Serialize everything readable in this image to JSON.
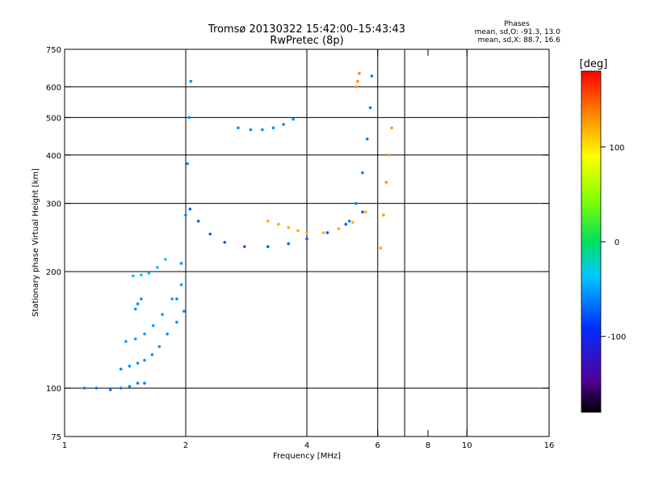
{
  "chart_data": {
    "type": "scatter",
    "title": "Tromsø 20130322 15:42:00–15:43:43",
    "subtitle": "RwPretec (8p)",
    "xlabel": "Frequency [MHz]",
    "ylabel": "Stationary phase Virtual Height [km]",
    "x_scale": "log",
    "y_scale": "log",
    "xlim": [
      1,
      16
    ],
    "ylim": [
      75,
      750
    ],
    "x_ticks": [
      1,
      2,
      4,
      6,
      8,
      10,
      16
    ],
    "x_tick_labels": [
      "1",
      "2",
      "4",
      "6",
      "8",
      "10",
      "16"
    ],
    "x_gridlines": [
      2,
      4,
      6,
      7,
      10
    ],
    "y_ticks": [
      75,
      100,
      200,
      300,
      400,
      500,
      600,
      750
    ],
    "y_tick_labels": [
      "75",
      "100",
      "200",
      "300",
      "400",
      "500",
      "600",
      "750"
    ],
    "y_gridlines": [
      100,
      200,
      300,
      400,
      500,
      600
    ],
    "grid": true,
    "stats": {
      "heading": "Phases",
      "line_o": "mean, sd,O: -91.3, 13.0",
      "line_x": "mean, sd,X: 88.7, 16.6"
    },
    "colorbar": {
      "label": "[deg]",
      "min": -180,
      "max": 180,
      "ticks": [
        100,
        0,
        -100
      ],
      "tick_labels": [
        "100",
        "0",
        "-100"
      ]
    },
    "traces": [
      {
        "x": [
          1.12,
          1.2,
          1.3,
          1.38,
          1.45,
          1.52,
          1.58
        ],
        "y": [
          100,
          100,
          99,
          100,
          101,
          103,
          103
        ],
        "phase": -105
      },
      {
        "x": [
          1.38,
          1.45,
          1.52,
          1.58,
          1.65,
          1.72,
          1.8,
          1.9,
          1.98
        ],
        "y": [
          112,
          114,
          116,
          118,
          122,
          128,
          138,
          148,
          158
        ],
        "phase": -100
      },
      {
        "x": [
          1.42,
          1.5,
          1.58,
          1.66,
          1.75,
          1.85,
          1.95
        ],
        "y": [
          132,
          134,
          138,
          145,
          155,
          170,
          185
        ],
        "phase": -95
      },
      {
        "x": [
          1.48,
          1.55,
          1.62,
          1.7,
          1.78
        ],
        "y": [
          195,
          196,
          198,
          205,
          215
        ],
        "phase": -85
      },
      {
        "x": [
          1.5,
          1.52,
          1.55
        ],
        "y": [
          160,
          165,
          170
        ],
        "phase": -100
      },
      {
        "x": [
          1.9,
          1.95,
          2.0,
          2.02,
          2.04,
          2.06
        ],
        "y": [
          170,
          210,
          280,
          380,
          500,
          620
        ],
        "phase": -100
      },
      {
        "x": [
          2.05,
          2.15,
          2.3,
          2.5,
          2.8,
          3.2,
          3.6,
          4.0,
          4.5,
          5.0,
          5.5
        ],
        "y": [
          290,
          270,
          250,
          238,
          232,
          232,
          236,
          243,
          252,
          265,
          285
        ],
        "phase": -115
      },
      {
        "x": [
          3.2,
          3.4,
          3.6,
          3.8,
          4.0,
          4.4,
          4.8,
          5.2,
          5.6
        ],
        "y": [
          270,
          265,
          260,
          255,
          252,
          252,
          258,
          268,
          285
        ],
        "phase": 110
      },
      {
        "x": [
          2.7,
          2.9,
          3.1,
          3.3,
          3.5,
          3.7
        ],
        "y": [
          470,
          465,
          465,
          470,
          480,
          495
        ],
        "phase": -100
      },
      {
        "x": [
          5.1,
          5.3,
          5.5,
          5.65,
          5.75,
          5.8
        ],
        "y": [
          270,
          300,
          360,
          440,
          530,
          640
        ],
        "phase": -105
      },
      {
        "x": [
          5.3,
          5.35,
          5.4
        ],
        "y": [
          600,
          620,
          650
        ],
        "phase": 120
      },
      {
        "x": [
          6.1,
          6.2,
          6.3,
          6.4,
          6.5
        ],
        "y": [
          230,
          280,
          340,
          400,
          470
        ],
        "phase": 115
      }
    ]
  }
}
